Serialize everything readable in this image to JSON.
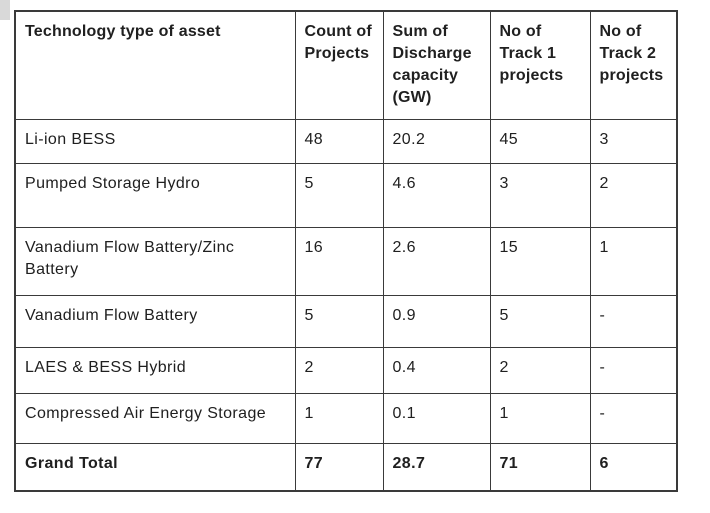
{
  "chart_data": {
    "type": "table",
    "title": "",
    "columns": [
      "Technology type of asset",
      "Count of Projects",
      "Sum of Discharge capacity (GW)",
      "No of Track 1 projects",
      "No of Track 2 projects"
    ],
    "rows": [
      [
        "Li-ion BESS",
        "48",
        "20.2",
        "45",
        "3"
      ],
      [
        "Pumped Storage Hydro",
        "5",
        "4.6",
        "3",
        "2"
      ],
      [
        "Vanadium Flow Battery/Zinc Battery",
        "16",
        "2.6",
        "15",
        "1"
      ],
      [
        "Vanadium Flow Battery",
        "5",
        "0.9",
        "5",
        "-"
      ],
      [
        "LAES & BESS Hybrid",
        "2",
        "0.4",
        "2",
        "-"
      ],
      [
        "Compressed Air Energy Storage",
        "1",
        "0.1",
        "1",
        "-"
      ]
    ],
    "grand_total": [
      "Grand Total",
      "77",
      "28.7",
      "71",
      "6"
    ],
    "layout_hints": {
      "grid": "all-borders",
      "header_bold": true,
      "grand_total_bold": true,
      "missing_value_marker": "-"
    }
  },
  "colors": {
    "background": "#ffffff",
    "border": "#3a3a3a",
    "text": "#202020",
    "edge_artifact": "#d9d9d9"
  }
}
